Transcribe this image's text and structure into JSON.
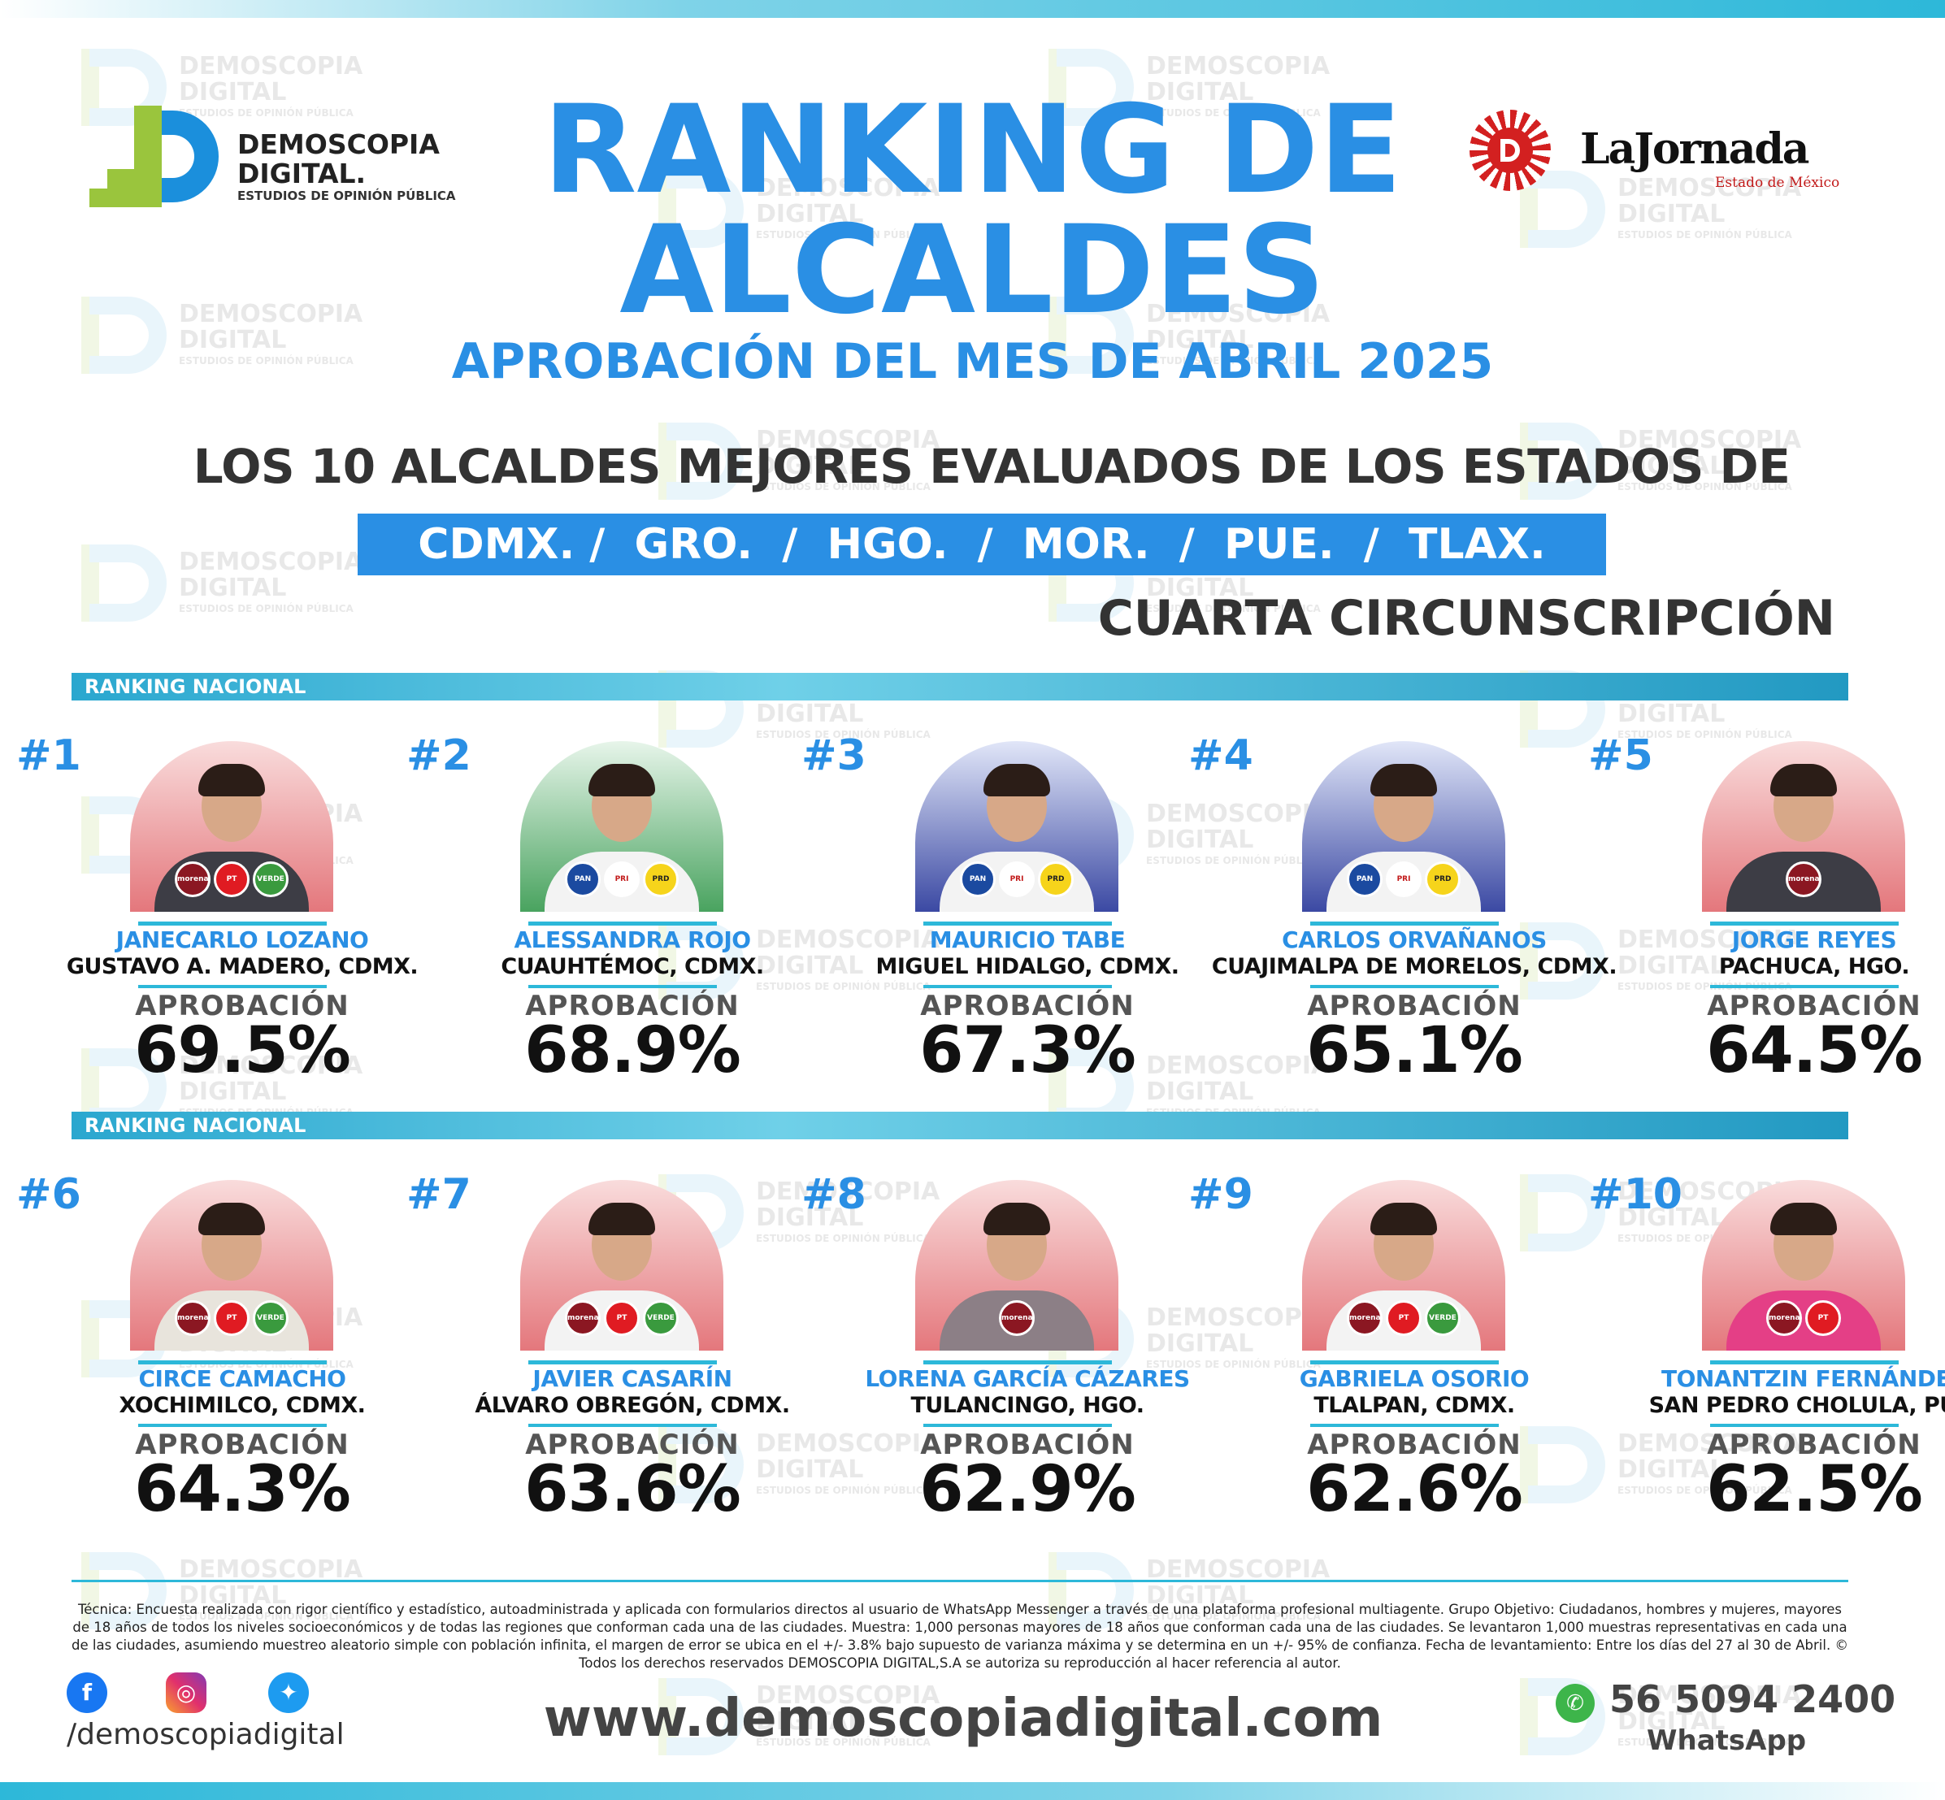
{
  "header": {
    "brand_name_line1": "DEMOSCOPIA",
    "brand_name_line2": "DIGITAL.",
    "brand_tagline": "ESTUDIOS DE OPINIÓN PÚBLICA",
    "partner_name": "LaJornada",
    "partner_sub": "Estado de México",
    "title_line1": "RANKING DE",
    "title_line2": "ALCALDES",
    "subtitle": "APROBACIÓN DEL MES DE ABRIL 2025",
    "los10": "LOS 10 ALCALDES MEJORES EVALUADOS DE LOS ESTADOS DE",
    "states": "CDMX. /  GRO.  /  HGO.  /  MOR.  /  PUE.  /  TLAX.",
    "region": "CUARTA CIRCUNSCRIPCIÓN"
  },
  "watermark": {
    "line1": "DEMOSCOPIA",
    "line2": "DIGITAL",
    "line3": "ESTUDIOS DE OPINIÓN PÚBLICA"
  },
  "section_label": "RANKING NACIONAL",
  "approval_label": "APROBACIÓN",
  "mayors": [
    {
      "rank": "#1",
      "name": "JANECARLO LOZANO",
      "place": "GUSTAVO A. MADERO, CDMX.",
      "approval": "69.5%",
      "parties": [
        "morena",
        "PT",
        "VERDE"
      ]
    },
    {
      "rank": "#2",
      "name": "ALESSANDRA ROJO",
      "place": "CUAUHTÉMOC, CDMX.",
      "approval": "68.9%",
      "parties": [
        "PAN",
        "PRI",
        "PRD"
      ]
    },
    {
      "rank": "#3",
      "name": "MAURICIO TABE",
      "place": "MIGUEL HIDALGO, CDMX.",
      "approval": "67.3%",
      "parties": [
        "PAN",
        "PRI",
        "PRD"
      ]
    },
    {
      "rank": "#4",
      "name": "CARLOS ORVAÑANOS",
      "place": "CUAJIMALPA DE MORELOS, CDMX.",
      "approval": "65.1%",
      "parties": [
        "PAN",
        "PRI",
        "PRD"
      ]
    },
    {
      "rank": "#5",
      "name": "JORGE REYES",
      "place": "PACHUCA, HGO.",
      "approval": "64.5%",
      "parties": [
        "morena"
      ]
    },
    {
      "rank": "#6",
      "name": "CIRCE CAMACHO",
      "place": "XOCHIMILCO, CDMX.",
      "approval": "64.3%",
      "parties": [
        "morena",
        "PT",
        "VERDE"
      ]
    },
    {
      "rank": "#7",
      "name": "JAVIER CASARÍN",
      "place": "ÁLVARO OBREGÓN, CDMX.",
      "approval": "63.6%",
      "parties": [
        "morena",
        "PT",
        "VERDE"
      ]
    },
    {
      "rank": "#8",
      "name": "LORENA GARCÍA CÁZARES",
      "place": "TULANCINGO, HGO.",
      "approval": "62.9%",
      "parties": [
        "morena"
      ]
    },
    {
      "rank": "#9",
      "name": "GABRIELA OSORIO",
      "place": "TLALPAN, CDMX.",
      "approval": "62.6%",
      "parties": [
        "morena",
        "PT",
        "VERDE"
      ]
    },
    {
      "rank": "#10",
      "name": "TONANTZIN FERNÁNDEZ",
      "place": "SAN PEDRO CHOLULA, PUE.",
      "approval": "62.5%",
      "parties": [
        "morena",
        "PT"
      ]
    }
  ],
  "footer": {
    "tecnica": "Técnica: Encuesta realizada con rigor científico y estadístico, autoadministrada y aplicada con formularios directos al usuario de WhatsApp Messenger a través de una plataforma profesional multiagente. Grupo Objetivo: Ciudadanos, hombres y mujeres, mayores de 18 años de todos los niveles socioeconómicos y de todas las regiones que conforman cada una de las ciudades. Muestra: 1,000 personas mayores de 18 años que conforman cada una de las ciudades. Se levantaron 1,000 muestras representativas en cada una de las ciudades, asumiendo muestreo aleatorio simple con población infinita, el margen de error se ubica en el +/- 3.8% bajo supuesto de varianza máxima y se determina en un +/- 95% de confianza. Fecha de levantamiento: Entre los días del 27 al 30 de Abril. ©  Todos los derechos reservados DEMOSCOPIA DIGITAL,S.A se autoriza su reproducción al hacer referencia al autor.",
    "handle": "/demoscopiadigital",
    "website": "www.demoscopiadigital.com",
    "phone": "56 5094 2400",
    "whatsapp_label": "WhatsApp",
    "icons": [
      "facebook-icon",
      "instagram-icon",
      "twitter-icon",
      "whatsapp-icon"
    ]
  },
  "colors": {
    "accent": "#2a8fe4",
    "bar": "#2db8d9",
    "brand_green": "#9ac53d",
    "partner_red": "#d32020"
  }
}
